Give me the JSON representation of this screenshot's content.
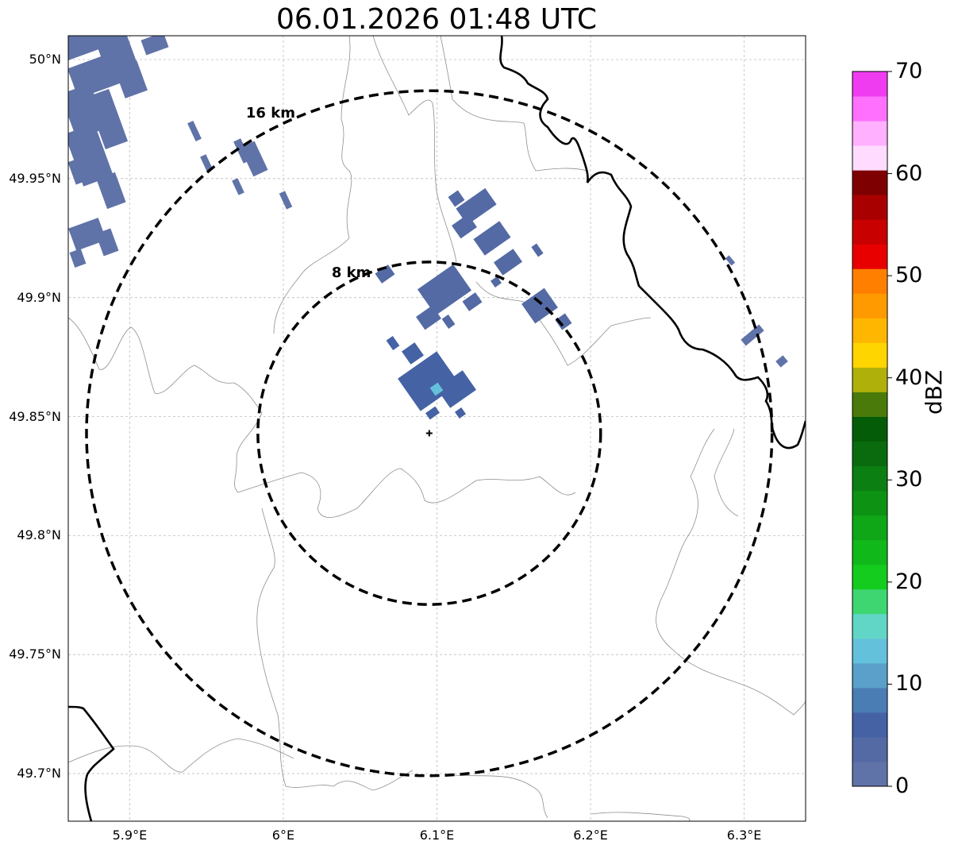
{
  "title": "06.01.2026 01:48 UTC",
  "map": {
    "lon_range": [
      5.86,
      6.34
    ],
    "lat_range": [
      49.68,
      50.01
    ],
    "x_ticks": [
      {
        "value": 5.9,
        "label": "5.9°E"
      },
      {
        "value": 6.0,
        "label": "6°E"
      },
      {
        "value": 6.1,
        "label": "6.1°E"
      },
      {
        "value": 6.2,
        "label": "6.2°E"
      },
      {
        "value": 6.3,
        "label": "6.3°E"
      }
    ],
    "y_ticks": [
      {
        "value": 49.7,
        "label": "49.7°N"
      },
      {
        "value": 49.75,
        "label": "49.75°N"
      },
      {
        "value": 49.8,
        "label": "49.8°N"
      },
      {
        "value": 49.85,
        "label": "49.85°N"
      },
      {
        "value": 49.9,
        "label": "49.9°N"
      },
      {
        "value": 49.95,
        "label": "49.95°N"
      },
      {
        "value": 50.0,
        "label": "50°N"
      }
    ],
    "radar_site": {
      "lon": 6.095,
      "lat": 49.843
    },
    "range_rings": [
      {
        "label": "8 km",
        "radius_km": 8
      },
      {
        "label": "16 km",
        "radius_km": 16
      }
    ],
    "gridlines": true
  },
  "colorbar": {
    "title": "dBZ",
    "min": 0,
    "max": 70,
    "tick_labels": [
      "0",
      "10",
      "20",
      "30",
      "40",
      "50",
      "60",
      "70"
    ],
    "colors": [
      "#6073a8",
      "#546aa4",
      "#4562a5",
      "#4b7db5",
      "#5aa0ca",
      "#64c1dc",
      "#61d6c6",
      "#3ed671",
      "#14cc1e",
      "#10b81a",
      "#0fa617",
      "#0d9213",
      "#0b7f11",
      "#0a6b0e",
      "#055c08",
      "#4a7a09",
      "#b0b00a",
      "#ffd500",
      "#ffb600",
      "#ff9a00",
      "#ff7f00",
      "#e80000",
      "#c80000",
      "#a80000",
      "#7e0000",
      "#ffdcff",
      "#ffb0ff",
      "#ff70ff",
      "#f03cf0"
    ]
  },
  "legend_colors": {
    "radar_echo": "#5b6fa6",
    "ring": "#000000",
    "border": "#000000",
    "admin_boundary": "#8a8a8a"
  }
}
